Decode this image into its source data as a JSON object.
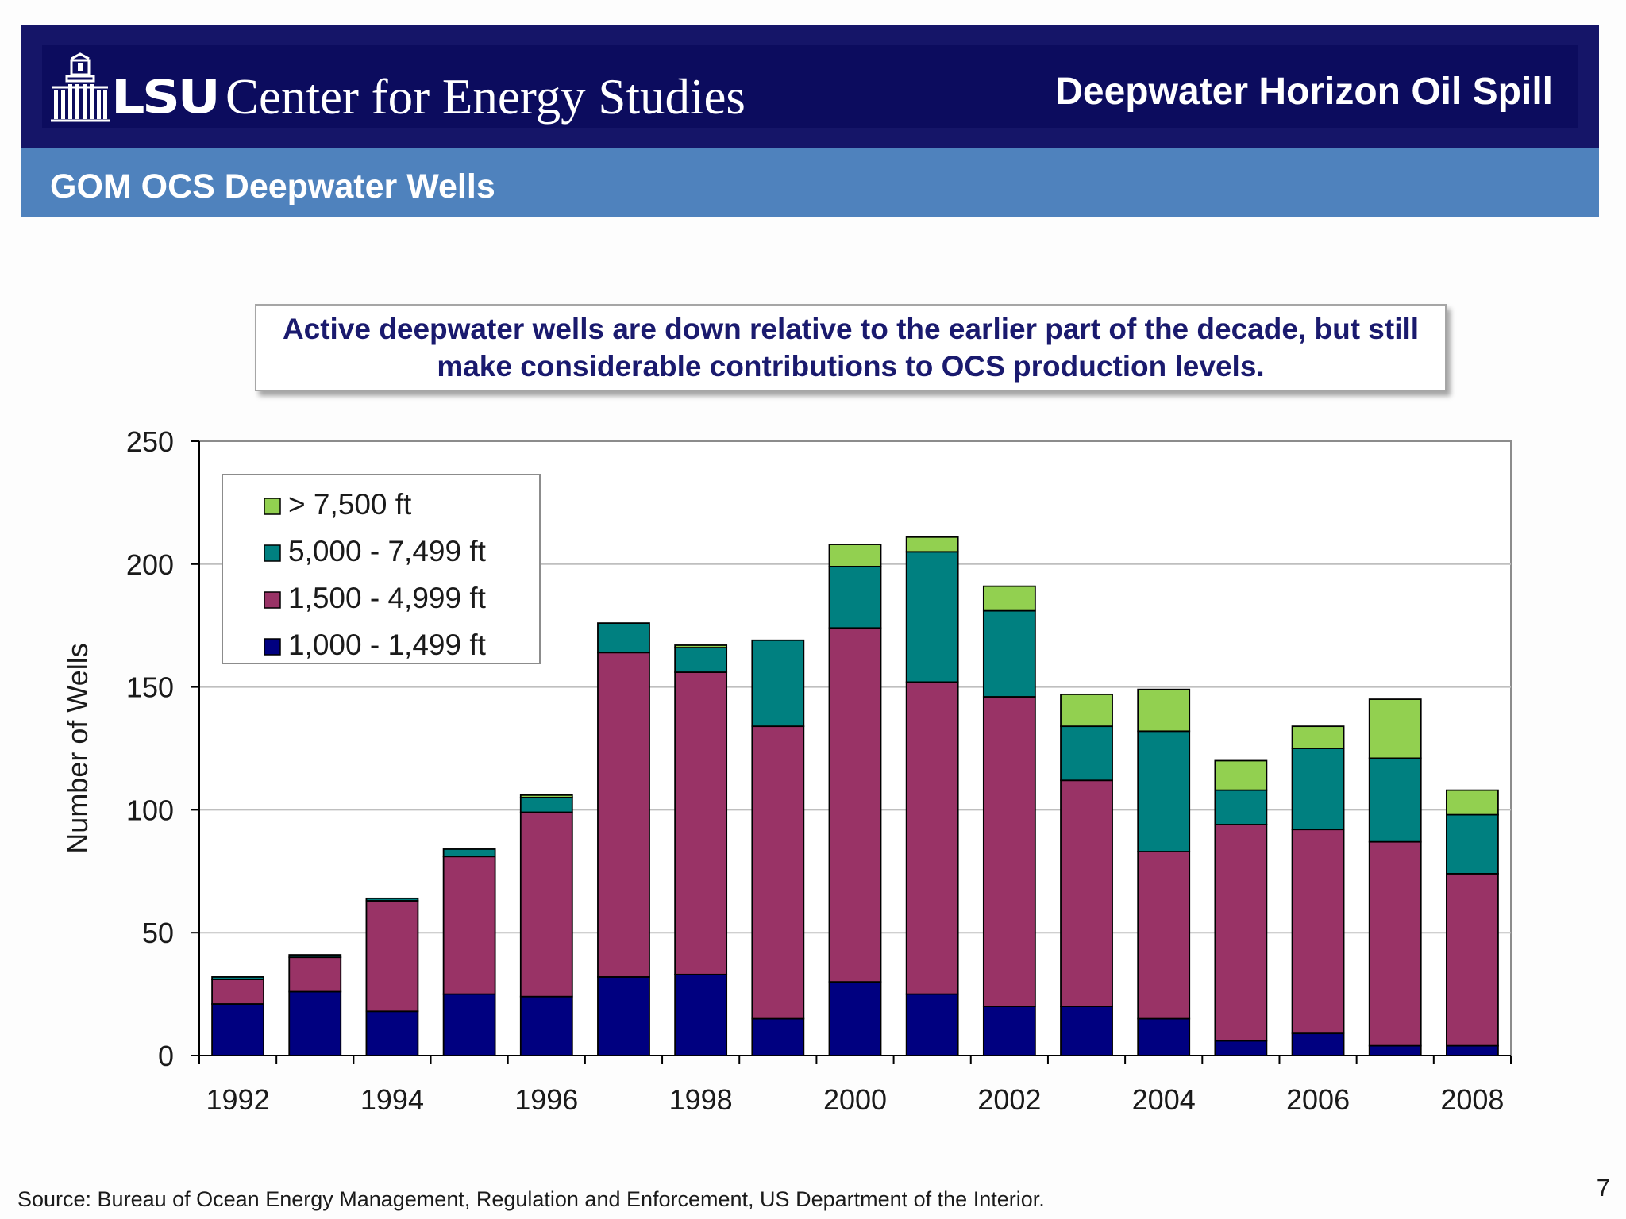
{
  "header": {
    "org_short": "LSU",
    "org_name": "Center for Energy Studies",
    "slide_title": "Deepwater Horizon Oil Spill"
  },
  "subheader": {
    "title": "GOM OCS Deepwater Wells"
  },
  "callout": {
    "text": "Active deepwater wells are down relative to the earlier part of the decade, but still make considerable contributions to OCS production levels."
  },
  "colors": {
    "header_bg": "#0c0c5e",
    "subheader_bg": "#4f82bd",
    "callout_text": "#1a1a6e",
    "series": [
      "#000080",
      "#993366",
      "#008080",
      "#92d050"
    ]
  },
  "chart_data": {
    "type": "bar",
    "stacked": true,
    "ylabel": "Number of Wells",
    "xlabel": "",
    "ylim": [
      0,
      250
    ],
    "yticks": [
      "0",
      "50",
      "100",
      "150",
      "200",
      "250"
    ],
    "grid": true,
    "legend_position": "top-left",
    "categories": [
      "1992",
      "1993",
      "1994",
      "1995",
      "1996",
      "1997",
      "1998",
      "1999",
      "2000",
      "2001",
      "2002",
      "2003",
      "2004",
      "2005",
      "2006",
      "2007",
      "2008"
    ],
    "xtick_labels": [
      "1992",
      "",
      "1994",
      "",
      "1996",
      "",
      "1998",
      "",
      "2000",
      "",
      "2002",
      "",
      "2004",
      "",
      "2006",
      "",
      "2008"
    ],
    "series": [
      {
        "name": "1,000 - 1,499 ft",
        "color": "#000080",
        "values": [
          21,
          26,
          18,
          25,
          24,
          32,
          33,
          15,
          30,
          25,
          20,
          20,
          15,
          6,
          9,
          4,
          4
        ]
      },
      {
        "name": "1,500 - 4,999 ft",
        "color": "#993366",
        "values": [
          10,
          14,
          45,
          56,
          75,
          132,
          123,
          119,
          144,
          127,
          126,
          92,
          68,
          88,
          83,
          83,
          70
        ]
      },
      {
        "name": "5,000 - 7,499 ft",
        "color": "#008080",
        "values": [
          1,
          1,
          1,
          3,
          6,
          12,
          10,
          35,
          25,
          53,
          35,
          22,
          49,
          14,
          33,
          34,
          24
        ]
      },
      {
        "name": "> 7,500 ft",
        "color": "#92d050",
        "values": [
          0,
          0,
          0,
          0,
          1,
          0,
          1,
          0,
          9,
          6,
          10,
          13,
          17,
          12,
          9,
          24,
          10
        ]
      }
    ]
  },
  "footer": {
    "source": "Source:  Bureau of Ocean Energy Management, Regulation and Enforcement, US Department of the Interior.",
    "page_number": "7"
  }
}
